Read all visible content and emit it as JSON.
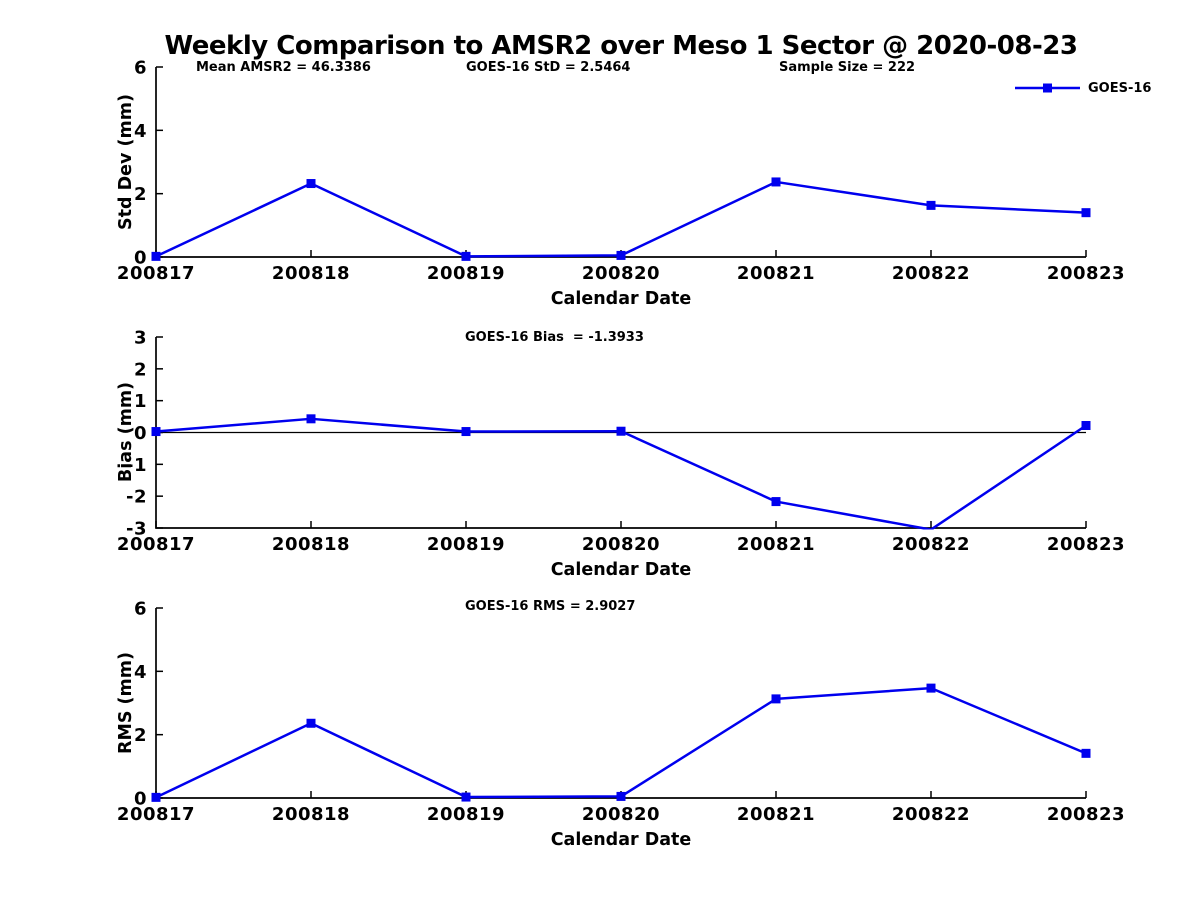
{
  "title": "Weekly Comparison to AMSR2 over Meso 1 Sector @ 2020-08-23",
  "colors": {
    "series": "#0000EE",
    "axis": "#000000",
    "text": "#000000",
    "background": "#FFFFFF"
  },
  "legend": {
    "label": "GOES-16",
    "position": "top-right"
  },
  "chart_data": [
    {
      "type": "line",
      "categories": [
        "200817",
        "200818",
        "200819",
        "200820",
        "200821",
        "200822",
        "200823"
      ],
      "series": [
        {
          "name": "GOES-16",
          "values": [
            0.02,
            2.32,
            0.02,
            0.05,
            2.37,
            1.63,
            1.4
          ]
        }
      ],
      "xlabel": "Calendar Date",
      "ylabel": "Std Dev (mm)",
      "ylim": [
        0,
        6
      ],
      "yticks": [
        0,
        2,
        4,
        6
      ],
      "grid": false,
      "zero_line": false,
      "annotations": [
        "Mean AMSR2 = 46.3386",
        "GOES-16 StD = 2.5464",
        "Sample Size = 222"
      ]
    },
    {
      "type": "line",
      "categories": [
        "200817",
        "200818",
        "200819",
        "200820",
        "200821",
        "200822",
        "200823"
      ],
      "series": [
        {
          "name": "GOES-16",
          "values": [
            0.03,
            0.43,
            0.03,
            0.04,
            -2.17,
            -3.05,
            0.22
          ]
        }
      ],
      "xlabel": "Calendar Date",
      "ylabel": "Bias (mm)",
      "ylim": [
        -3,
        3
      ],
      "yticks": [
        -3,
        -2,
        -1,
        0,
        1,
        2,
        3
      ],
      "grid": false,
      "zero_line": true,
      "annotations": [
        "GOES-16 Bias  = -1.3933"
      ]
    },
    {
      "type": "line",
      "categories": [
        "200817",
        "200818",
        "200819",
        "200820",
        "200821",
        "200822",
        "200823"
      ],
      "series": [
        {
          "name": "GOES-16",
          "values": [
            0.02,
            2.36,
            0.03,
            0.05,
            3.13,
            3.47,
            1.41
          ]
        }
      ],
      "xlabel": "Calendar Date",
      "ylabel": "RMS (mm)",
      "ylim": [
        0,
        6
      ],
      "yticks": [
        0,
        2,
        4,
        6
      ],
      "grid": false,
      "zero_line": false,
      "annotations": [
        "GOES-16 RMS = 2.9027"
      ]
    }
  ]
}
